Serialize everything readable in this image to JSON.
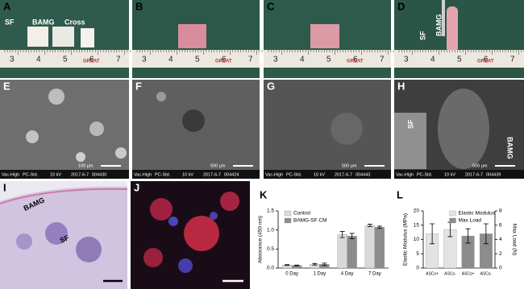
{
  "panels": [
    {
      "letter": "A",
      "labels": [
        "SF",
        "BAMG",
        "Cross"
      ]
    },
    {
      "letter": "B"
    },
    {
      "letter": "C"
    },
    {
      "letter": "D",
      "labels": [
        "SF",
        "BAMG"
      ]
    },
    {
      "letter": "E",
      "footer": [
        "Vac-High",
        "PC-Std.",
        "10 kV",
        "2017-6-7",
        "004430"
      ],
      "scale": "100 μm"
    },
    {
      "letter": "F",
      "footer": [
        "Vac-High",
        "PC-Std.",
        "10 kV",
        "2017-6-7",
        "004424"
      ],
      "scale": "500 μm"
    },
    {
      "letter": "G",
      "footer": [
        "Vac-High",
        "PC-Std.",
        "10 kV",
        "2017-6-7",
        "004443"
      ],
      "scale": "500 μm"
    },
    {
      "letter": "H",
      "labels": [
        "SF",
        "BAMG"
      ],
      "footer": [
        "Vac-High",
        "PC-Std.",
        "10 kV",
        "2017-6-7",
        "004439"
      ],
      "scale": "500 μm"
    },
    {
      "letter": "I",
      "labels": [
        "BAMG",
        "SF"
      ]
    },
    {
      "letter": "J"
    }
  ],
  "ruler": {
    "numbers": [
      "3",
      "4",
      "5",
      "6",
      "7"
    ],
    "brand": "GREAT"
  },
  "chart_data": [
    {
      "type": "bar",
      "panel": "K",
      "y_label": "Absorance (450 nm)",
      "categories": [
        "0 Day",
        "1 Day",
        "4 Day",
        "7 Day"
      ],
      "series": [
        {
          "name": "Control",
          "color": "#d9d9d9",
          "values": [
            0.08,
            0.1,
            0.88,
            1.12
          ],
          "errors": [
            0.01,
            0.02,
            0.08,
            0.03
          ]
        },
        {
          "name": "BAMG-SF CM",
          "color": "#8c8c8c",
          "values": [
            0.07,
            0.1,
            0.84,
            1.07
          ],
          "errors": [
            0.01,
            0.03,
            0.07,
            0.03
          ]
        }
      ],
      "ylim": [
        0,
        1.5
      ],
      "yticks": [
        {
          "value": 0,
          "label": "0.0"
        },
        0.5,
        {
          "value": 1,
          "label": "1.0"
        },
        1.5
      ],
      "legend": "top-left"
    },
    {
      "type": "bar",
      "panel": "L",
      "y_label": "Elastic Modulus (MPa)",
      "y2_label": "Max Load (N)",
      "categories": [
        "ASCs+",
        "ASCs-",
        "ASCs+",
        "ASCs-"
      ],
      "series": [
        {
          "name": "Elastic Modulus",
          "color": "#e3e3e3",
          "values": [
            12,
            13.5,
            null,
            null
          ],
          "errors": [
            3.5,
            2.5,
            null,
            null
          ]
        },
        {
          "name": "Max Load",
          "color": "#8c8c8c",
          "axis": "y2",
          "values": [
            null,
            null,
            4.5,
            4.8
          ],
          "errors": [
            null,
            null,
            1.0,
            1.4
          ]
        }
      ],
      "ylim": [
        0,
        20
      ],
      "yticks": [
        0,
        5,
        10,
        15,
        20
      ],
      "y2lim": [
        0,
        8
      ],
      "y2ticks": [
        0,
        2,
        4,
        6,
        8
      ],
      "legend": "top"
    }
  ]
}
